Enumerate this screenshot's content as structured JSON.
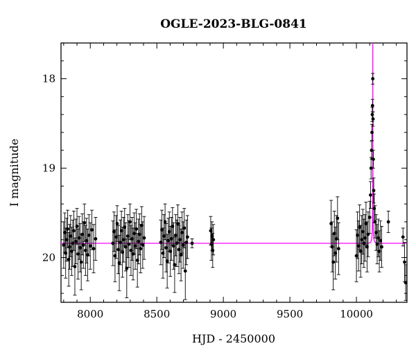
{
  "chart_data": {
    "type": "scatter",
    "title": "OGLE-2023-BLG-0841",
    "xlabel": "HJD - 2450000",
    "ylabel": "I magnitude",
    "xlim": [
      7780,
      10380
    ],
    "ylim": [
      20.5,
      17.6
    ],
    "y_inverted": true,
    "grid": false,
    "xticks": [
      8000,
      8500,
      9000,
      9500,
      10000
    ],
    "xtick_labels": [
      "8000",
      "8500",
      "9000",
      "9500",
      "10000"
    ],
    "yticks": [
      18,
      19,
      20
    ],
    "ytick_labels": [
      "18",
      "19",
      "20"
    ],
    "colors": {
      "points": "#000000",
      "model": "#ff00ff",
      "axes": "#000000"
    },
    "series": [
      {
        "kind": "points_with_errorbars",
        "points": [
          {
            "x": 7800,
            "y": 19.86,
            "err": 0.26
          },
          {
            "x": 7808,
            "y": 19.72,
            "err": 0.22
          },
          {
            "x": 7815,
            "y": 19.95,
            "err": 0.28
          },
          {
            "x": 7822,
            "y": 19.8,
            "err": 0.24
          },
          {
            "x": 7830,
            "y": 19.68,
            "err": 0.21
          },
          {
            "x": 7838,
            "y": 20.02,
            "err": 0.3
          },
          {
            "x": 7845,
            "y": 19.88,
            "err": 0.25
          },
          {
            "x": 7852,
            "y": 19.76,
            "err": 0.23
          },
          {
            "x": 7860,
            "y": 19.93,
            "err": 0.27
          },
          {
            "x": 7868,
            "y": 19.84,
            "err": 0.26
          },
          {
            "x": 7876,
            "y": 19.7,
            "err": 0.22
          },
          {
            "x": 7884,
            "y": 20.1,
            "err": 0.32
          },
          {
            "x": 7892,
            "y": 19.82,
            "err": 0.25
          },
          {
            "x": 7900,
            "y": 19.65,
            "err": 0.2
          },
          {
            "x": 7908,
            "y": 19.96,
            "err": 0.28
          },
          {
            "x": 7916,
            "y": 19.78,
            "err": 0.24
          },
          {
            "x": 7924,
            "y": 19.89,
            "err": 0.27
          },
          {
            "x": 7932,
            "y": 20.05,
            "err": 0.31
          },
          {
            "x": 7940,
            "y": 19.74,
            "err": 0.23
          },
          {
            "x": 7948,
            "y": 19.86,
            "err": 0.26
          },
          {
            "x": 7956,
            "y": 19.61,
            "err": 0.21
          },
          {
            "x": 7964,
            "y": 19.92,
            "err": 0.28
          },
          {
            "x": 7972,
            "y": 19.81,
            "err": 0.25
          },
          {
            "x": 7980,
            "y": 19.97,
            "err": 0.29
          },
          {
            "x": 7990,
            "y": 19.75,
            "err": 0.23
          },
          {
            "x": 8000,
            "y": 19.87,
            "err": 0.26
          },
          {
            "x": 8012,
            "y": 19.69,
            "err": 0.22
          },
          {
            "x": 8025,
            "y": 19.9,
            "err": 0.27
          },
          {
            "x": 8040,
            "y": 19.79,
            "err": 0.24
          },
          {
            "x": 8170,
            "y": 19.84,
            "err": 0.25
          },
          {
            "x": 8178,
            "y": 19.71,
            "err": 0.22
          },
          {
            "x": 8186,
            "y": 19.98,
            "err": 0.29
          },
          {
            "x": 8194,
            "y": 19.77,
            "err": 0.24
          },
          {
            "x": 8202,
            "y": 19.62,
            "err": 0.2
          },
          {
            "x": 8210,
            "y": 19.91,
            "err": 0.27
          },
          {
            "x": 8218,
            "y": 20.06,
            "err": 0.31
          },
          {
            "x": 8226,
            "y": 19.83,
            "err": 0.25
          },
          {
            "x": 8234,
            "y": 19.7,
            "err": 0.22
          },
          {
            "x": 8242,
            "y": 19.94,
            "err": 0.28
          },
          {
            "x": 8250,
            "y": 19.8,
            "err": 0.25
          },
          {
            "x": 8258,
            "y": 19.66,
            "err": 0.21
          },
          {
            "x": 8266,
            "y": 19.88,
            "err": 0.27
          },
          {
            "x": 8274,
            "y": 20.12,
            "err": 0.33
          },
          {
            "x": 8282,
            "y": 19.76,
            "err": 0.24
          },
          {
            "x": 8290,
            "y": 19.85,
            "err": 0.26
          },
          {
            "x": 8298,
            "y": 19.6,
            "err": 0.2
          },
          {
            "x": 8306,
            "y": 19.92,
            "err": 0.28
          },
          {
            "x": 8314,
            "y": 19.79,
            "err": 0.24
          },
          {
            "x": 8322,
            "y": 19.96,
            "err": 0.29
          },
          {
            "x": 8330,
            "y": 19.73,
            "err": 0.23
          },
          {
            "x": 8338,
            "y": 19.87,
            "err": 0.26
          },
          {
            "x": 8346,
            "y": 19.68,
            "err": 0.22
          },
          {
            "x": 8354,
            "y": 20.03,
            "err": 0.3
          },
          {
            "x": 8362,
            "y": 19.82,
            "err": 0.25
          },
          {
            "x": 8370,
            "y": 19.74,
            "err": 0.23
          },
          {
            "x": 8378,
            "y": 19.9,
            "err": 0.27
          },
          {
            "x": 8386,
            "y": 19.64,
            "err": 0.21
          },
          {
            "x": 8394,
            "y": 19.86,
            "err": 0.26
          },
          {
            "x": 8405,
            "y": 19.78,
            "err": 0.24
          },
          {
            "x": 8530,
            "y": 19.83,
            "err": 0.25
          },
          {
            "x": 8538,
            "y": 19.69,
            "err": 0.22
          },
          {
            "x": 8546,
            "y": 19.95,
            "err": 0.28
          },
          {
            "x": 8554,
            "y": 19.76,
            "err": 0.24
          },
          {
            "x": 8562,
            "y": 19.6,
            "err": 0.2
          },
          {
            "x": 8570,
            "y": 19.89,
            "err": 0.27
          },
          {
            "x": 8578,
            "y": 20.04,
            "err": 0.3
          },
          {
            "x": 8586,
            "y": 19.81,
            "err": 0.25
          },
          {
            "x": 8594,
            "y": 19.71,
            "err": 0.22
          },
          {
            "x": 8602,
            "y": 19.93,
            "err": 0.28
          },
          {
            "x": 8610,
            "y": 19.79,
            "err": 0.24
          },
          {
            "x": 8618,
            "y": 19.65,
            "err": 0.21
          },
          {
            "x": 8626,
            "y": 19.87,
            "err": 0.26
          },
          {
            "x": 8634,
            "y": 20.08,
            "err": 0.31
          },
          {
            "x": 8642,
            "y": 19.75,
            "err": 0.23
          },
          {
            "x": 8650,
            "y": 19.84,
            "err": 0.26
          },
          {
            "x": 8658,
            "y": 19.62,
            "err": 0.21
          },
          {
            "x": 8666,
            "y": 19.91,
            "err": 0.27
          },
          {
            "x": 8674,
            "y": 19.8,
            "err": 0.25
          },
          {
            "x": 8682,
            "y": 19.97,
            "err": 0.29
          },
          {
            "x": 8690,
            "y": 19.72,
            "err": 0.23
          },
          {
            "x": 8698,
            "y": 19.86,
            "err": 0.26
          },
          {
            "x": 8706,
            "y": 19.67,
            "err": 0.22
          },
          {
            "x": 8714,
            "y": 20.15,
            "err": 0.32
          },
          {
            "x": 8722,
            "y": 19.83,
            "err": 0.25
          },
          {
            "x": 8730,
            "y": 19.77,
            "err": 0.24
          },
          {
            "x": 8765,
            "y": 19.84,
            "err": 0.05
          },
          {
            "x": 8905,
            "y": 19.7,
            "err": 0.16
          },
          {
            "x": 8910,
            "y": 19.85,
            "err": 0.18
          },
          {
            "x": 8915,
            "y": 19.76,
            "err": 0.16
          },
          {
            "x": 8920,
            "y": 19.92,
            "err": 0.19
          },
          {
            "x": 8925,
            "y": 19.8,
            "err": 0.17
          },
          {
            "x": 9810,
            "y": 19.62,
            "err": 0.26
          },
          {
            "x": 9818,
            "y": 19.88,
            "err": 0.28
          },
          {
            "x": 9826,
            "y": 20.05,
            "err": 0.31
          },
          {
            "x": 9834,
            "y": 19.73,
            "err": 0.25
          },
          {
            "x": 9842,
            "y": 19.95,
            "err": 0.29
          },
          {
            "x": 9850,
            "y": 19.79,
            "err": 0.26
          },
          {
            "x": 9858,
            "y": 19.56,
            "err": 0.24
          },
          {
            "x": 9866,
            "y": 19.9,
            "err": 0.29
          },
          {
            "x": 10000,
            "y": 19.98,
            "err": 0.29
          },
          {
            "x": 10008,
            "y": 19.75,
            "err": 0.26
          },
          {
            "x": 10016,
            "y": 19.87,
            "err": 0.28
          },
          {
            "x": 10024,
            "y": 19.66,
            "err": 0.25
          },
          {
            "x": 10032,
            "y": 19.93,
            "err": 0.29
          },
          {
            "x": 10040,
            "y": 19.8,
            "err": 0.27
          },
          {
            "x": 10048,
            "y": 19.71,
            "err": 0.25
          },
          {
            "x": 10056,
            "y": 19.84,
            "err": 0.27
          },
          {
            "x": 10064,
            "y": 19.78,
            "err": 0.26
          },
          {
            "x": 10072,
            "y": 19.62,
            "err": 0.24
          },
          {
            "x": 10080,
            "y": 19.88,
            "err": 0.28
          },
          {
            "x": 10088,
            "y": 19.74,
            "err": 0.25
          },
          {
            "x": 10100,
            "y": 19.55,
            "err": 0.18
          },
          {
            "x": 10106,
            "y": 19.3,
            "err": 0.15
          },
          {
            "x": 10110,
            "y": 19.0,
            "err": 0.12
          },
          {
            "x": 10114,
            "y": 18.8,
            "err": 0.1
          },
          {
            "x": 10117,
            "y": 18.6,
            "err": 0.09
          },
          {
            "x": 10119,
            "y": 18.4,
            "err": 0.08
          },
          {
            "x": 10121,
            "y": 18.3,
            "err": 0.07
          },
          {
            "x": 10123,
            "y": 18.0,
            "err": 0.06
          },
          {
            "x": 10125,
            "y": 18.45,
            "err": 0.08
          },
          {
            "x": 10127,
            "y": 18.9,
            "err": 0.1
          },
          {
            "x": 10130,
            "y": 19.25,
            "err": 0.14
          },
          {
            "x": 10134,
            "y": 19.45,
            "err": 0.16
          },
          {
            "x": 10140,
            "y": 19.6,
            "err": 0.18
          },
          {
            "x": 10148,
            "y": 19.72,
            "err": 0.2
          },
          {
            "x": 10156,
            "y": 19.85,
            "err": 0.22
          },
          {
            "x": 10164,
            "y": 19.78,
            "err": 0.21
          },
          {
            "x": 10172,
            "y": 19.93,
            "err": 0.23
          },
          {
            "x": 10180,
            "y": 19.81,
            "err": 0.22
          },
          {
            "x": 10190,
            "y": 19.88,
            "err": 0.23
          },
          {
            "x": 10240,
            "y": 19.6,
            "err": 0.12
          },
          {
            "x": 10350,
            "y": 19.77,
            "err": 0.1
          },
          {
            "x": 10362,
            "y": 20.05,
            "err": 0.22
          },
          {
            "x": 10370,
            "y": 20.28,
            "err": 0.2
          }
        ]
      },
      {
        "kind": "model_curve",
        "baseline": 19.84,
        "t0": 10123,
        "u0": 0.002,
        "tE": 12,
        "fs": 0.068
      }
    ]
  }
}
